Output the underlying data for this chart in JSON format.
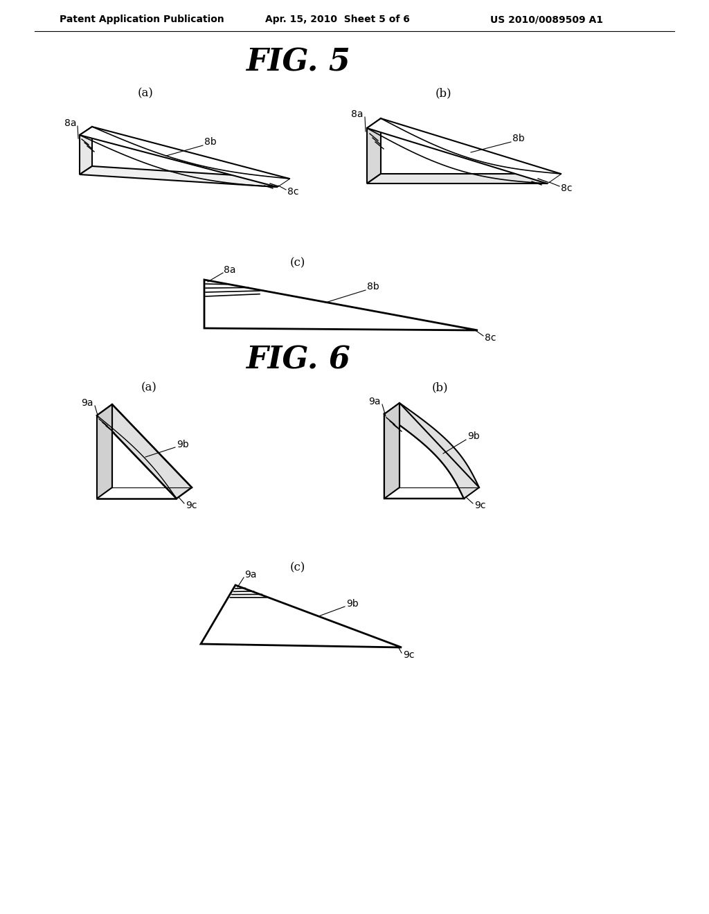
{
  "header_left": "Patent Application Publication",
  "header_mid": "Apr. 15, 2010  Sheet 5 of 6",
  "header_right": "US 2010/0089509 A1",
  "fig5_title": "FIG. 5",
  "fig6_title": "FIG. 6",
  "bg_color": "#ffffff",
  "line_color": "#000000",
  "text_color": "#000000"
}
